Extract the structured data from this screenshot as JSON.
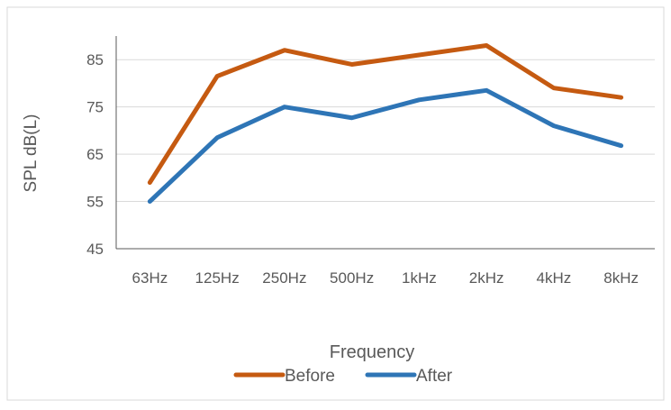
{
  "chart_data": {
    "type": "line",
    "title": "",
    "xlabel": "Frequency",
    "ylabel": "SPL  dB(L)",
    "categories": [
      "63Hz",
      "125Hz",
      "250Hz",
      "500Hz",
      "1kHz",
      "2kHz",
      "4kHz",
      "8kHz"
    ],
    "ylim": [
      45,
      90
    ],
    "yticks": [
      45,
      55,
      65,
      75,
      85
    ],
    "grid": true,
    "legend_position": "bottom",
    "series": [
      {
        "name": "Before",
        "color": "#C55A11",
        "values": [
          59,
          81.5,
          87,
          84,
          86,
          88,
          79,
          77
        ]
      },
      {
        "name": "After",
        "color": "#2E75B6",
        "values": [
          55,
          68.5,
          75,
          72.7,
          76.5,
          78.5,
          71,
          66.8
        ]
      }
    ]
  }
}
